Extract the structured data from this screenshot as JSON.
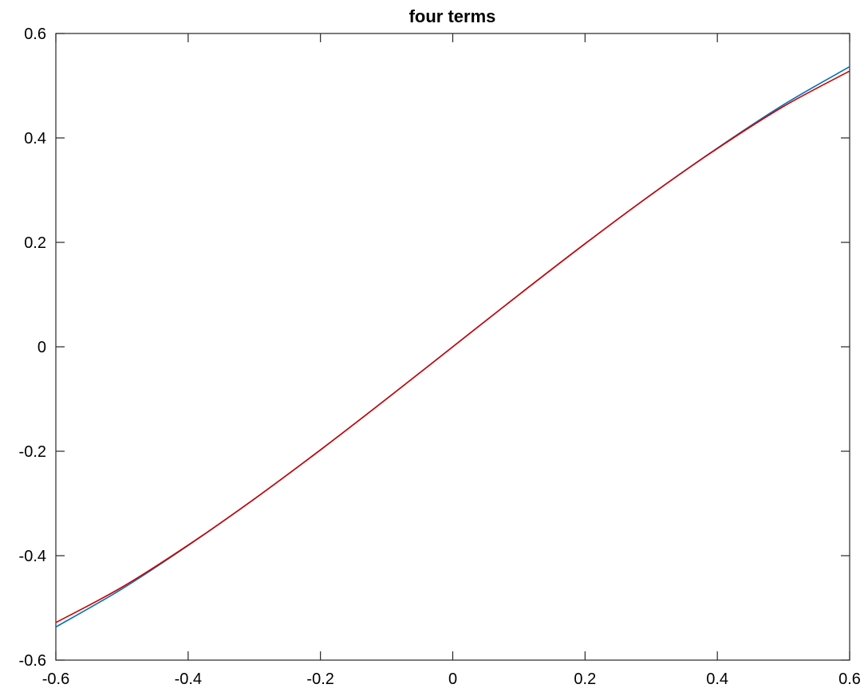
{
  "chart_data": {
    "type": "line",
    "title": "four terms",
    "xlabel": "",
    "ylabel": "",
    "xlim": [
      -0.6,
      0.6
    ],
    "ylim": [
      -0.6,
      0.6
    ],
    "grid": false,
    "x_ticks": [
      -0.6,
      -0.4,
      -0.2,
      0,
      0.2,
      0.4,
      0.6
    ],
    "y_ticks": [
      -0.6,
      -0.4,
      -0.2,
      0,
      0.2,
      0.4,
      0.6
    ],
    "x_tick_labels": [
      "-0.6",
      "-0.4",
      "-0.2",
      "0",
      "0.2",
      "0.4",
      "0.6"
    ],
    "y_tick_labels": [
      "-0.6",
      "-0.4",
      "-0.2",
      "0",
      "0.2",
      "0.4",
      "0.6"
    ],
    "x": [
      -0.6,
      -0.5,
      -0.4,
      -0.3,
      -0.2,
      -0.1,
      0,
      0.1,
      0.2,
      0.3,
      0.4,
      0.5,
      0.6
    ],
    "series": [
      {
        "color": "#0072bd",
        "values": [
          -0.5365,
          -0.4636,
          -0.3805,
          -0.2915,
          -0.1974,
          -0.0997,
          0,
          0.0997,
          0.1974,
          0.2915,
          0.3805,
          0.4636,
          0.5365
        ]
      },
      {
        "color": "#d00000",
        "values": [
          -0.5281,
          -0.4603,
          -0.3797,
          -0.2914,
          -0.1974,
          -0.0997,
          0,
          0.0997,
          0.1974,
          0.2914,
          0.3797,
          0.4603,
          0.5281
        ]
      }
    ]
  }
}
